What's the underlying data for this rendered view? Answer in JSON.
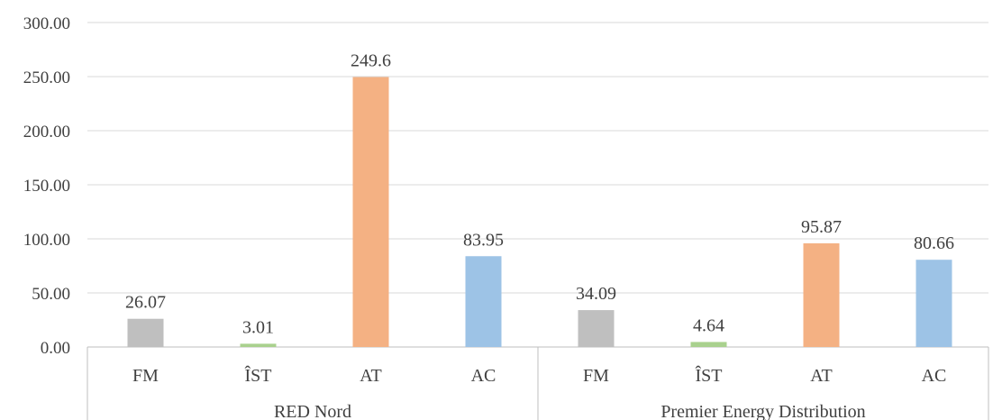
{
  "chart_data": {
    "type": "bar",
    "title": "",
    "xlabel": "",
    "ylabel": "",
    "ylim": [
      0,
      300
    ],
    "yticks": [
      "0.00",
      "50.00",
      "100.00",
      "150.00",
      "200.00",
      "250.00",
      "300.00"
    ],
    "grid": true,
    "legend": "none",
    "groups": [
      {
        "name": "RED Nord",
        "categories": [
          "FM",
          "ÎST",
          "AT",
          "AC"
        ],
        "values": [
          26.07,
          3.01,
          249.6,
          83.95
        ],
        "labels": [
          "26.07",
          "3.01",
          "249.6",
          "83.95"
        ]
      },
      {
        "name": "Premier Energy Distribution",
        "categories": [
          "FM",
          "ÎST",
          "AT",
          "AC"
        ],
        "values": [
          34.09,
          4.64,
          95.87,
          80.66
        ],
        "labels": [
          "34.09",
          "4.64",
          "95.87",
          "80.66"
        ]
      }
    ],
    "colors": {
      "FM": "#bfbfbf",
      "ÎST": "#a9d18e",
      "AT": "#f4b183",
      "AC": "#9dc3e6",
      "grid": "#d9d9d9",
      "axis": "#bfbfbf",
      "text": "#404040"
    }
  }
}
